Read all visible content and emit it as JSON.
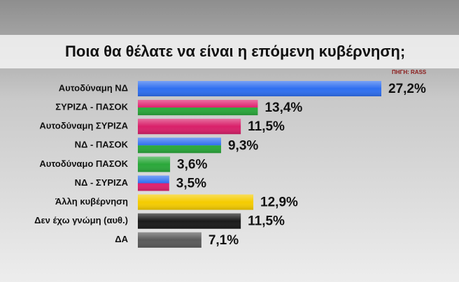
{
  "chart_data": {
    "type": "bar",
    "orientation": "horizontal",
    "title": "Ποια θα θέλατε να είναι η επόμενη κυβέρνηση;",
    "source": "ΠΗΓΗ: RASS",
    "categories": [
      "Αυτοδύναμη ΝΔ",
      "ΣΥΡΙΖΑ - ΠΑΣΟΚ",
      "Αυτοδύναμη ΣΥΡΙΖΑ",
      "ΝΔ - ΠΑΣΟΚ",
      "Αυτοδύναμο ΠΑΣΟΚ",
      "ΝΔ - ΣΥΡΙΖΑ",
      "Άλλη κυβέρνηση",
      "Δεν έχω γνώμη (αυθ.)",
      "ΔΑ"
    ],
    "values": [
      27.2,
      13.4,
      11.5,
      9.3,
      3.6,
      3.5,
      12.9,
      11.5,
      7.1
    ],
    "value_labels": [
      "27,2%",
      "13,4%",
      "11,5%",
      "9,3%",
      "3,6%",
      "3,5%",
      "12,9%",
      "11,5%",
      "7,1%"
    ],
    "colors": [
      [
        "#2f6ff0"
      ],
      [
        "#e0206e",
        "#2aa83a"
      ],
      [
        "#d9206a"
      ],
      [
        "#2f6ff0",
        "#2aa83a"
      ],
      [
        "#2aa83a"
      ],
      [
        "#2f6ff0",
        "#e0206e"
      ],
      [
        "#f5cc00"
      ],
      [
        "#1a1a1a"
      ],
      [
        "#5a5a5a"
      ]
    ]
  }
}
